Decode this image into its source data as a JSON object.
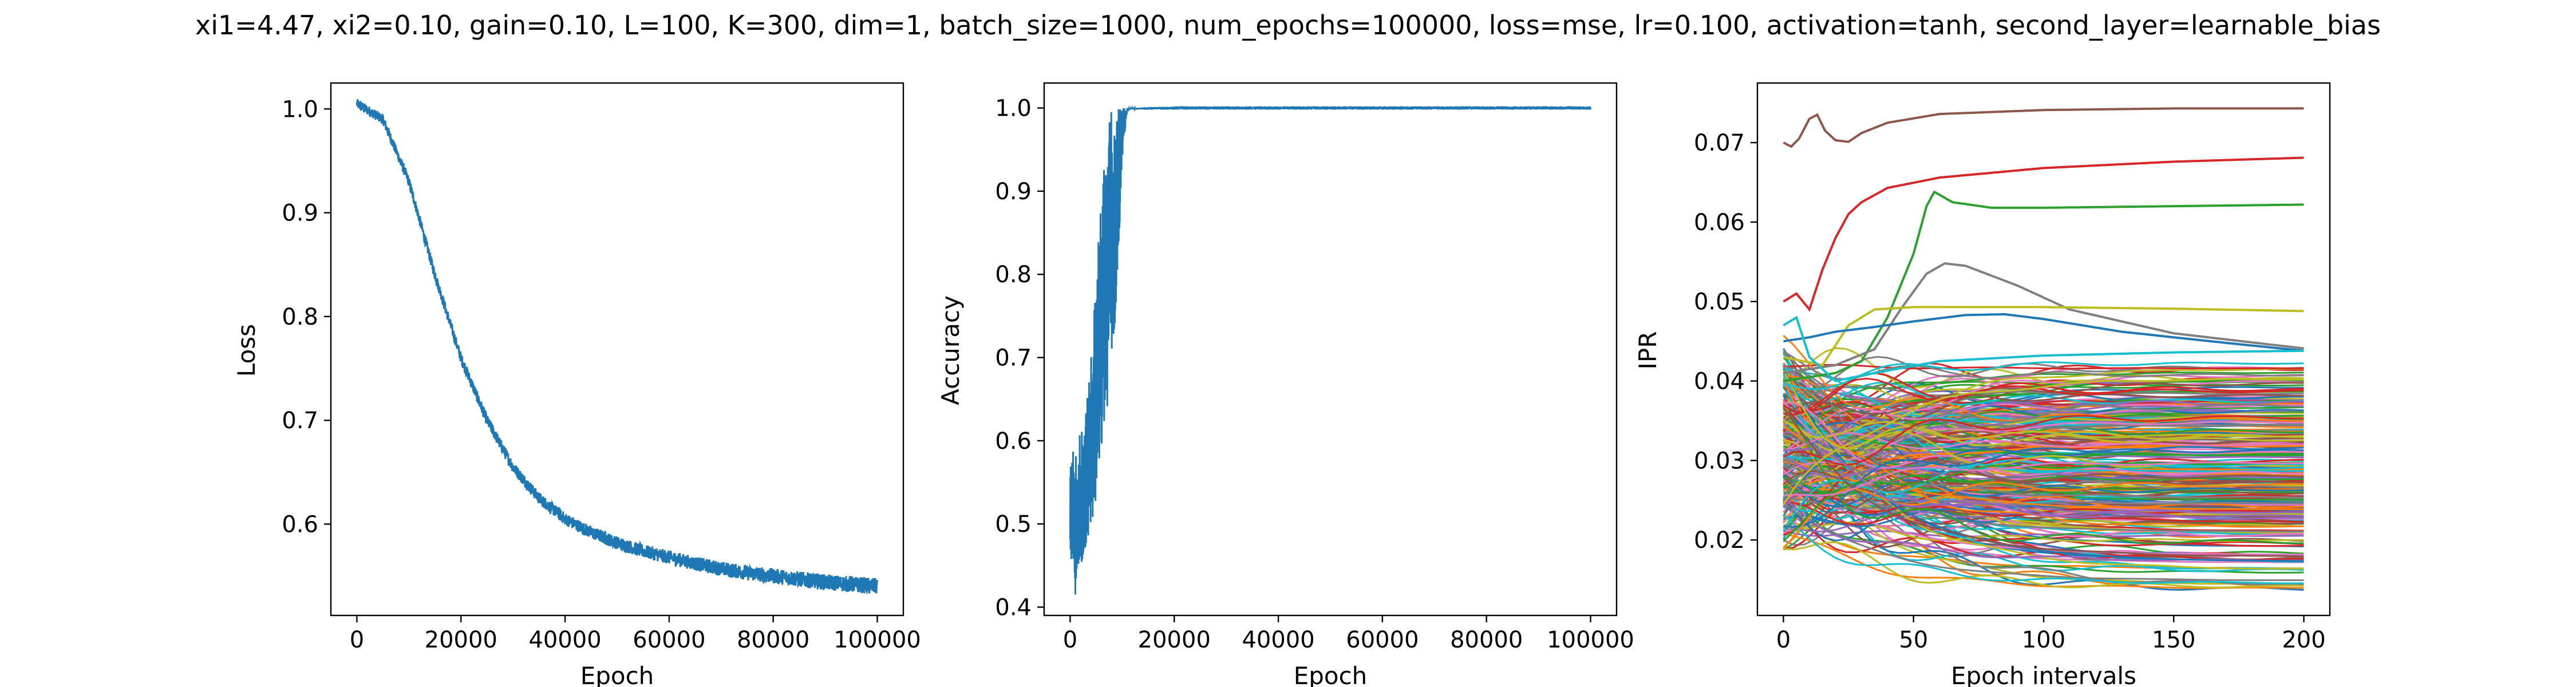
{
  "title": "xi1=4.47, xi2=0.10, gain=0.10, L=100, K=300, dim=1, batch_size=1000, num_epochs=100000, loss=mse, lr=0.100, activation=tanh, second_layer=learnable_bias",
  "colors": {
    "series_default": "#1f77b4",
    "cycle": [
      "#1f77b4",
      "#ff7f0e",
      "#2ca02c",
      "#d62728",
      "#9467bd",
      "#8c564b",
      "#e377c2",
      "#7f7f7f",
      "#bcbd22",
      "#17becf"
    ]
  },
  "chart_data": [
    {
      "type": "line",
      "xlabel": "Epoch",
      "ylabel": "Loss",
      "xlim": [
        -5000,
        105000
      ],
      "ylim": [
        0.512,
        1.025
      ],
      "xticks": [
        0,
        20000,
        40000,
        60000,
        80000,
        100000
      ],
      "xtick_labels": [
        "0",
        "20000",
        "40000",
        "60000",
        "80000",
        "100000"
      ],
      "yticks": [
        0.6,
        0.7,
        0.8,
        0.9,
        1.0
      ],
      "ytick_labels": [
        "0.6",
        "0.7",
        "0.8",
        "0.9",
        "1.0"
      ],
      "grid": false,
      "series": [
        {
          "color": "#1f77b4",
          "noise": 0.008,
          "x": [
            0,
            5000,
            10000,
            15000,
            20000,
            25000,
            30000,
            35000,
            40000,
            45000,
            50000,
            55000,
            60000,
            65000,
            70000,
            75000,
            80000,
            85000,
            90000,
            95000,
            100000
          ],
          "y": [
            1.005,
            0.99,
            0.93,
            0.84,
            0.76,
            0.7,
            0.655,
            0.625,
            0.605,
            0.592,
            0.582,
            0.574,
            0.568,
            0.562,
            0.557,
            0.553,
            0.55,
            0.547,
            0.544,
            0.542,
            0.54
          ]
        }
      ]
    },
    {
      "type": "line",
      "xlabel": "Epoch",
      "ylabel": "Accuracy",
      "xlim": [
        -5000,
        105000
      ],
      "ylim": [
        0.39,
        1.03
      ],
      "xticks": [
        0,
        20000,
        40000,
        60000,
        80000,
        100000
      ],
      "xtick_labels": [
        "0",
        "20000",
        "40000",
        "60000",
        "80000",
        "100000"
      ],
      "yticks": [
        0.4,
        0.5,
        0.6,
        0.7,
        0.8,
        0.9,
        1.0
      ],
      "ytick_labels": [
        "0.4",
        "0.5",
        "0.6",
        "0.7",
        "0.8",
        "0.9",
        "1.0"
      ],
      "grid": false,
      "series": [
        {
          "color": "#1f77b4",
          "x": [
            0,
            1000,
            2000,
            3000,
            4000,
            5000,
            6000,
            7000,
            8000,
            9000,
            10000,
            11000,
            20000,
            40000,
            60000,
            80000,
            100000
          ],
          "y": [
            0.5,
            0.51,
            0.53,
            0.56,
            0.6,
            0.66,
            0.74,
            0.84,
            0.93,
            0.985,
            0.998,
            1.0,
            1.0,
            1.0,
            1.0,
            1.0,
            1.0
          ],
          "lo": [
            0.46,
            0.415,
            0.44,
            0.47,
            0.49,
            0.52,
            0.58,
            0.63,
            0.7,
            0.76,
            0.94,
            0.998,
            0.998,
            0.998,
            0.998,
            0.998,
            0.998
          ],
          "hi": [
            0.58,
            0.6,
            0.61,
            0.64,
            0.7,
            0.8,
            0.9,
            0.97,
            1.0,
            1.0,
            1.0,
            1.0,
            1.002,
            1.002,
            1.002,
            1.002,
            1.002
          ]
        }
      ]
    },
    {
      "type": "line",
      "xlabel": "Epoch intervals",
      "ylabel": "IPR",
      "xlim": [
        -10,
        210
      ],
      "ylim": [
        0.0105,
        0.0775
      ],
      "xticks": [
        0,
        50,
        100,
        150,
        200
      ],
      "xtick_labels": [
        "0",
        "50",
        "100",
        "150",
        "200"
      ],
      "yticks": [
        0.02,
        0.03,
        0.04,
        0.05,
        0.06,
        0.07
      ],
      "ytick_labels": [
        "0.02",
        "0.03",
        "0.04",
        "0.05",
        "0.06",
        "0.07"
      ],
      "grid": false,
      "series_count": 300,
      "x_points": [
        0,
        10,
        20,
        30,
        40,
        50,
        60,
        80,
        100,
        150,
        200
      ],
      "highlighted_series": [
        {
          "color": "#8c564b",
          "x": [
            0,
            3,
            6,
            10,
            13,
            16,
            20,
            25,
            30,
            40,
            60,
            100,
            150,
            200
          ],
          "y": [
            0.07,
            0.0695,
            0.0705,
            0.073,
            0.0735,
            0.0715,
            0.0703,
            0.0701,
            0.0712,
            0.0725,
            0.0736,
            0.0741,
            0.0743,
            0.0743
          ]
        },
        {
          "color": "#d62728",
          "x": [
            0,
            5,
            10,
            15,
            20,
            25,
            30,
            40,
            60,
            100,
            150,
            200
          ],
          "y": [
            0.05,
            0.051,
            0.049,
            0.054,
            0.058,
            0.061,
            0.0625,
            0.0643,
            0.0656,
            0.0668,
            0.0676,
            0.0681
          ]
        },
        {
          "color": "#2ca02c",
          "x": [
            0,
            20,
            30,
            40,
            50,
            55,
            58,
            65,
            80,
            100,
            150,
            200
          ],
          "y": [
            0.04,
            0.041,
            0.0425,
            0.048,
            0.056,
            0.062,
            0.0638,
            0.0625,
            0.0618,
            0.0618,
            0.062,
            0.0622
          ]
        },
        {
          "color": "#7f7f7f",
          "x": [
            0,
            20,
            35,
            45,
            55,
            62,
            70,
            90,
            110,
            150,
            200
          ],
          "y": [
            0.041,
            0.042,
            0.044,
            0.049,
            0.0535,
            0.0548,
            0.0545,
            0.052,
            0.049,
            0.046,
            0.0441
          ]
        },
        {
          "color": "#bcbd22",
          "x": [
            0,
            15,
            25,
            35,
            50,
            100,
            150,
            200
          ],
          "y": [
            0.043,
            0.042,
            0.047,
            0.049,
            0.0493,
            0.0493,
            0.0491,
            0.0488
          ]
        },
        {
          "color": "#1f77b4",
          "x": [
            0,
            10,
            20,
            35,
            50,
            70,
            85,
            100,
            130,
            170,
            200
          ],
          "y": [
            0.045,
            0.0455,
            0.0462,
            0.0468,
            0.0475,
            0.0483,
            0.0484,
            0.0478,
            0.0462,
            0.0448,
            0.0438
          ]
        },
        {
          "color": "#17becf",
          "x": [
            0,
            5,
            10,
            20,
            35,
            60,
            100,
            150,
            200
          ],
          "y": [
            0.047,
            0.048,
            0.043,
            0.04,
            0.041,
            0.0425,
            0.0432,
            0.0436,
            0.0438
          ]
        }
      ],
      "bulk_band": {
        "start_range": [
          0.021,
          0.043
        ],
        "end_range": [
          0.0135,
          0.0425
        ]
      }
    }
  ]
}
